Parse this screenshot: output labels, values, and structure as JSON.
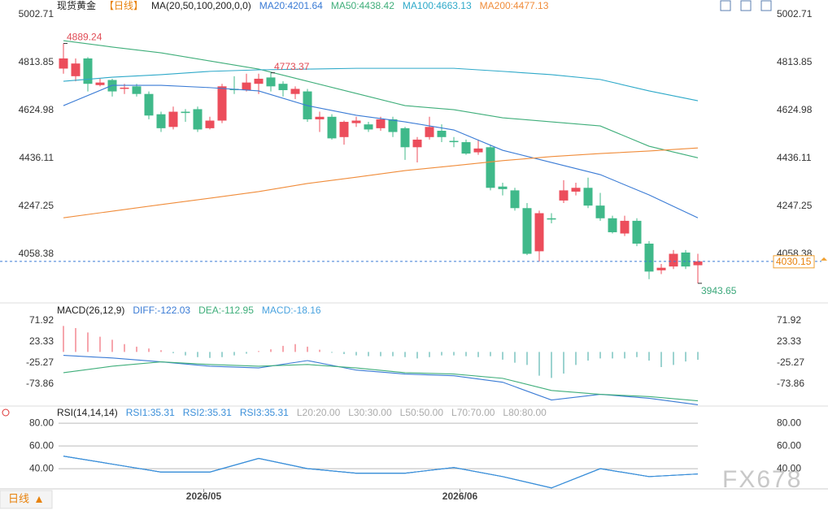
{
  "chart_data": [
    {
      "type": "candlestick",
      "title": "现货黄金",
      "period": "【日线】",
      "indicator": "MA(20,50,100,200,0,0)",
      "up_color": "#ec4d5b",
      "down_color": "#40b98a",
      "open": [
        4790,
        4760,
        4830,
        4725,
        4745,
        4710,
        4720,
        4690,
        4610,
        4560,
        4620,
        4630,
        4555,
        4585,
        4710,
        4705,
        4730,
        4755,
        4730,
        4690,
        4700,
        4590,
        4600,
        4520,
        4575,
        4570,
        4555,
        4590,
        4555,
        4480,
        4520,
        4545,
        4505,
        4500,
        4460,
        4480,
        4325,
        4310,
        4240,
        4070,
        4200,
        4270,
        4305,
        4320,
        4250,
        4200,
        4140,
        4190,
        4100,
        3995,
        4010,
        4065,
        4015
      ],
      "high": [
        4889.24,
        4830,
        4835,
        4750,
        4750,
        4730,
        4730,
        4700,
        4620,
        4640,
        4630,
        4640,
        4600,
        4730,
        4760,
        4770,
        4770,
        4773.37,
        4740,
        4720,
        4710,
        4620,
        4610,
        4585,
        4600,
        4580,
        4600,
        4600,
        4560,
        4520,
        4600,
        4570,
        4520,
        4510,
        4510,
        4490,
        4340,
        4320,
        4260,
        4230,
        4220,
        4350,
        4340,
        4360,
        4300,
        4210,
        4210,
        4200,
        4110,
        4020,
        4075,
        4075,
        4060
      ],
      "low": [
        4770,
        4740,
        4700,
        4720,
        4680,
        4690,
        4680,
        4590,
        4540,
        4550,
        4580,
        4540,
        4550,
        4575,
        4690,
        4700,
        4690,
        4700,
        4680,
        4670,
        4580,
        4540,
        4510,
        4490,
        4560,
        4540,
        4545,
        4520,
        4430,
        4420,
        4510,
        4500,
        4480,
        4450,
        4450,
        4310,
        4290,
        4230,
        4055,
        4030,
        4180,
        4260,
        4290,
        4240,
        4190,
        4140,
        4130,
        4090,
        3960,
        3980,
        4000,
        4000,
        3943.65
      ],
      "close": [
        4830,
        4810,
        4730,
        4735,
        4700,
        4715,
        4690,
        4605,
        4555,
        4620,
        4615,
        4550,
        4585,
        4720,
        4705,
        4735,
        4750,
        4720,
        4705,
        4710,
        4590,
        4600,
        4515,
        4580,
        4585,
        4550,
        4590,
        4540,
        4480,
        4510,
        4560,
        4520,
        4500,
        4455,
        4475,
        4320,
        4315,
        4240,
        4060,
        4220,
        4195,
        4310,
        4320,
        4250,
        4200,
        4145,
        4190,
        4100,
        3990,
        4005,
        4060,
        4010,
        4030.15
      ],
      "lines": [
        {
          "name": "MA20:4201.64",
          "color": "#3a7bd5",
          "x": [
            0,
            4,
            8,
            12,
            16,
            20,
            24,
            28,
            32,
            36,
            40,
            44,
            48,
            52
          ],
          "values": [
            4644,
            4724,
            4724,
            4715,
            4702,
            4644,
            4606,
            4580,
            4548,
            4468,
            4420,
            4372,
            4292,
            4201.64
          ]
        },
        {
          "name": "MA50:4438.42",
          "color": "#3fae7a",
          "x": [
            0,
            4,
            8,
            12,
            16,
            20,
            24,
            28,
            32,
            36,
            40,
            44,
            48,
            52
          ],
          "values": [
            4900,
            4875,
            4852,
            4820,
            4788,
            4740,
            4692,
            4644,
            4628,
            4596,
            4580,
            4564,
            4484,
            4438.42
          ]
        },
        {
          "name": "MA100:4663.13",
          "color": "#2ea9c9",
          "x": [
            0,
            4,
            8,
            12,
            16,
            20,
            24,
            28,
            32,
            36,
            40,
            44,
            48,
            52
          ],
          "values": [
            4740,
            4756,
            4766,
            4779,
            4785,
            4788,
            4791,
            4791,
            4791,
            4779,
            4766,
            4747,
            4702,
            4663.13
          ]
        },
        {
          "name": "MA200:4477.13",
          "color": "#f08c3a",
          "x": [
            0,
            4,
            8,
            12,
            16,
            20,
            24,
            28,
            32,
            36,
            40,
            44,
            48,
            52
          ],
          "values": [
            4202,
            4228,
            4254,
            4279,
            4305,
            4337,
            4362,
            4388,
            4407,
            4427,
            4443,
            4455,
            4465,
            4477.13
          ]
        }
      ],
      "annotations": [
        {
          "x": 0,
          "value": 4889.24,
          "color": "#e04b55"
        },
        {
          "x": 17,
          "value": 4773.37,
          "color": "#e04b55"
        },
        {
          "x": 52,
          "value": 3943.65,
          "color": "#3aa77a"
        }
      ],
      "last_price": 4030.15,
      "ylim": [
        3876,
        5028.3
      ],
      "yticks": [
        5002.71,
        4813.85,
        4624.98,
        4436.11,
        4247.25,
        4058.38
      ],
      "xticks": [
        {
          "value": 11.5,
          "label": "2026/05"
        },
        {
          "value": 32.5,
          "label": "2026/06"
        }
      ]
    },
    {
      "type": "macd",
      "title": "MACD(26,12,9)",
      "histogram": {
        "name": "MACD:-18.16",
        "color": "#4aa3df",
        "up_color": "#ec4d5b",
        "down_color": "#3aa7a0",
        "values": [
          60,
          55,
          45,
          35,
          28,
          18,
          12,
          8,
          4,
          -3,
          -8,
          -12,
          -14,
          -12,
          -8,
          -4,
          2,
          6,
          14,
          18,
          12,
          5,
          -2,
          -5,
          -8,
          -10,
          -10,
          -10,
          -12,
          -15,
          -12,
          -8,
          -8,
          -10,
          -12,
          -10,
          -18,
          -25,
          -30,
          -55,
          -60,
          -50,
          -30,
          -20,
          -15,
          -15,
          -15,
          -12,
          -20,
          -35,
          -30,
          -22,
          -18.16
        ]
      },
      "lines": [
        {
          "name": "DIFF:-122.03",
          "color": "#3a7bd5",
          "x": [
            0,
            4,
            8,
            12,
            16,
            20,
            24,
            28,
            32,
            36,
            40,
            44,
            48,
            52
          ],
          "values": [
            -8,
            -14,
            -23,
            -33,
            -37,
            -20,
            -42,
            -51,
            -55,
            -70,
            -111,
            -98,
            -107,
            -122.03
          ]
        },
        {
          "name": "DEA:-112.95",
          "color": "#3fae7a",
          "x": [
            0,
            4,
            8,
            12,
            16,
            20,
            24,
            28,
            32,
            36,
            40,
            44,
            48,
            52
          ],
          "values": [
            -48,
            -33,
            -23,
            -29,
            -33,
            -29,
            -37,
            -48,
            -51,
            -61,
            -89,
            -98,
            -103,
            -112.95
          ]
        }
      ],
      "ylim": [
        -125,
        100
      ],
      "yticks": [
        71.92,
        23.33,
        -25.27,
        -73.86
      ]
    },
    {
      "type": "rsi",
      "title": "RSI(14,14,14)",
      "lines": [
        {
          "name": "RSI1:35.31",
          "color": "#3b8fd9",
          "x": [
            0,
            4,
            8,
            12,
            16,
            20,
            24,
            28,
            32,
            36,
            40,
            44,
            48,
            52
          ],
          "values": [
            51,
            44,
            37,
            37,
            49,
            40,
            36,
            36,
            41,
            33,
            23,
            40,
            33,
            35.31
          ]
        },
        {
          "name": "RSI2:35.31",
          "color": "#3b8fd9",
          "x": [
            0,
            4,
            8,
            12,
            16,
            20,
            24,
            28,
            32,
            36,
            40,
            44,
            48,
            52
          ],
          "values": [
            51,
            44,
            37,
            37,
            49,
            40,
            36,
            36,
            41,
            33,
            23,
            40,
            33,
            35.31
          ]
        },
        {
          "name": "RSI3:35.31",
          "color": "#3b8fd9",
          "x": [
            0,
            4,
            8,
            12,
            16,
            20,
            24,
            28,
            32,
            36,
            40,
            44,
            48,
            52
          ],
          "values": [
            51,
            44,
            37,
            37,
            49,
            40,
            36,
            36,
            41,
            33,
            23,
            40,
            33,
            35.31
          ]
        }
      ],
      "level_labels": [
        "L20:20.00",
        "L30:30.00",
        "L50:50.00",
        "L70:70.00",
        "L80:80.00"
      ],
      "ylim": [
        23.6,
        88
      ],
      "yticks": [
        {
          "value": 80,
          "label": "80.00"
        },
        {
          "value": 60,
          "label": "60.00"
        },
        {
          "value": 40,
          "label": "40.00"
        }
      ],
      "grid": true
    }
  ],
  "footer": {
    "period_tab": "日线",
    "watermark": "FX678"
  }
}
